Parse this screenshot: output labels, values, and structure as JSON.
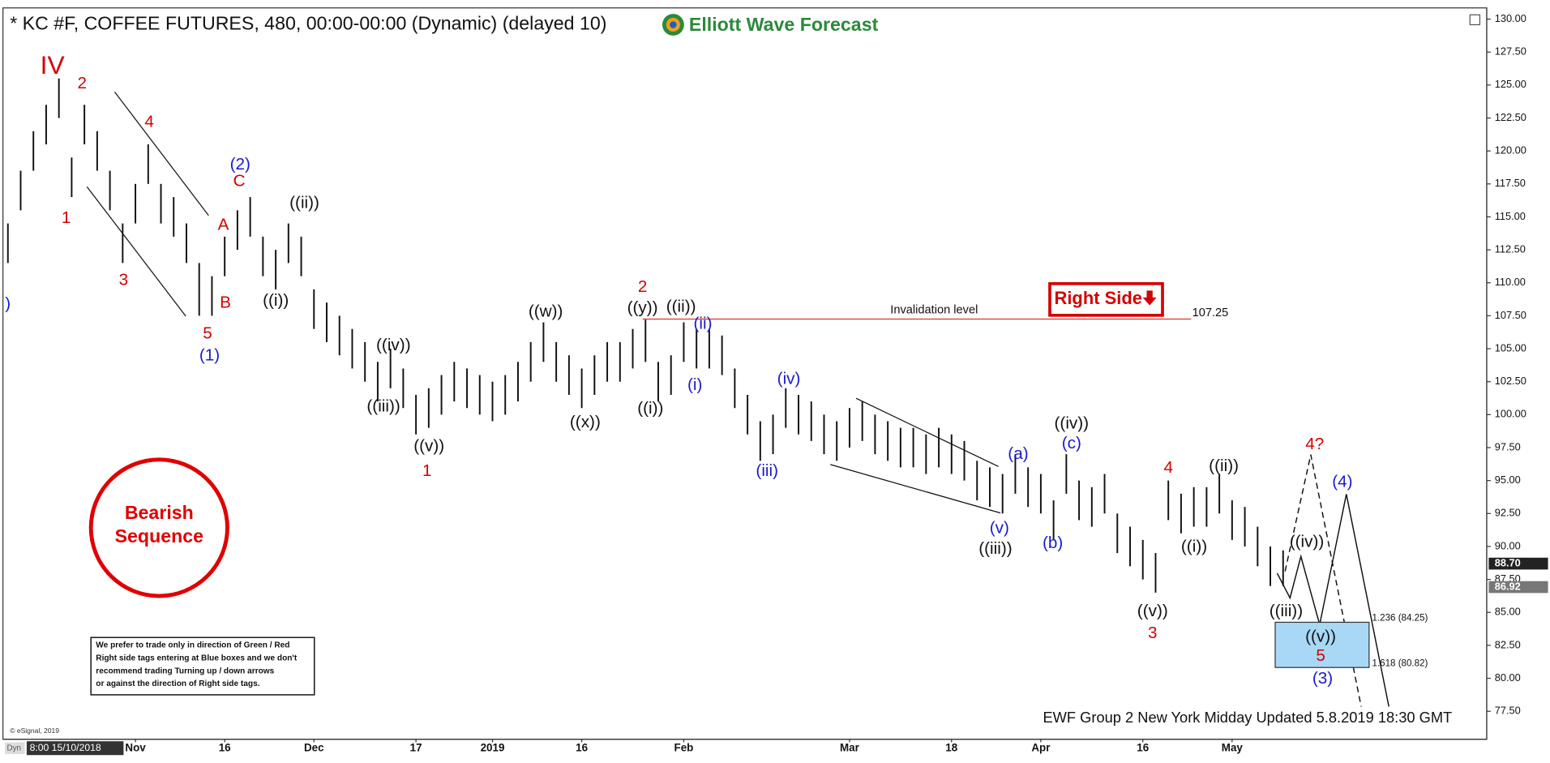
{
  "title": "* KC #F, COFFEE FUTURES, 480, 00:00-00:00 (Dynamic) (delayed 10)",
  "logo": "Elliott Wave Forecast",
  "right_side_tag": "Right Side",
  "bearish_label": [
    "Bearish",
    "Sequence"
  ],
  "disclaimer": [
    "We prefer to trade only in direction of Green / Red",
    "Right side tags entering at Blue boxes and we don't",
    "recommend trading Turning up / down arrows",
    "or against the direction of Right side tags."
  ],
  "footer": "EWF Group 2 New York Midday Updated 5.8.2019 18:30 GMT",
  "copyright": "© eSignal, 2019",
  "cursor_label": "Dyn",
  "cursor_time": "8:00 15/10/2018",
  "chart_data": {
    "type": "ohlc",
    "color": "#111111",
    "categories": [
      null,
      null,
      null,
      null,
      null,
      null,
      null,
      null,
      null,
      null,
      "Nov",
      null,
      null,
      null,
      null,
      null,
      null,
      "16",
      null,
      null,
      null,
      null,
      null,
      null,
      "Dec",
      null,
      null,
      null,
      null,
      null,
      null,
      null,
      "17",
      null,
      null,
      null,
      null,
      null,
      "2019",
      null,
      null,
      null,
      null,
      null,
      null,
      "16",
      null,
      null,
      null,
      null,
      null,
      null,
      null,
      "Feb",
      null,
      null,
      null,
      null,
      null,
      null,
      null,
      null,
      null,
      null,
      null,
      null,
      "Mar",
      null,
      null,
      null,
      null,
      null,
      null,
      null,
      "18",
      null,
      null,
      null,
      null,
      null,
      null,
      "Apr",
      null,
      null,
      null,
      null,
      null,
      null,
      null,
      "16",
      null,
      null,
      null,
      null,
      null,
      null,
      "May",
      null,
      null,
      null,
      null,
      null,
      null,
      null,
      null,
      null,
      null,
      null,
      null,
      null,
      null,
      null,
      null,
      null
    ],
    "high": [
      114.5,
      118.5,
      121.5,
      123.5,
      125.5,
      119.5,
      123.5,
      121.5,
      118.5,
      114.5,
      117.5,
      120.5,
      117.5,
      116.5,
      114.5,
      111.5,
      110.5,
      113.5,
      115.5,
      116.5,
      113.5,
      112.5,
      114.5,
      113.5,
      109.5,
      108.5,
      107.5,
      106.5,
      105.5,
      104,
      105,
      103.5,
      101.5,
      102,
      103,
      104,
      103.5,
      103,
      102.5,
      103,
      104,
      105.5,
      107,
      105.5,
      104.5,
      103.5,
      104.5,
      105.5,
      105.5,
      106.5,
      107.2,
      104,
      104.5,
      107,
      106.5,
      106.5,
      106,
      103.5,
      101.5,
      99.5,
      100,
      102,
      101.5,
      101,
      100,
      99.5,
      100.5,
      101,
      100,
      99.5,
      99,
      99,
      98.5,
      99,
      98.5,
      98,
      96.5,
      96,
      95.5,
      97,
      96,
      95.5,
      93.5,
      97,
      95,
      94.5,
      95.5,
      92.5,
      91.5,
      90.5,
      89.5,
      95,
      94,
      94.5,
      94.5,
      95.5,
      93.5,
      93,
      91.5,
      90,
      89.7,
      null,
      null,
      null,
      null,
      null,
      null,
      null,
      null,
      null,
      null,
      null,
      null,
      null
    ],
    "low": [
      111.5,
      115.5,
      118.5,
      120.5,
      122.5,
      116.5,
      120.5,
      118.5,
      115.5,
      111.5,
      114.5,
      117.5,
      114.5,
      113.5,
      111.5,
      107.5,
      107.5,
      110.5,
      112.5,
      113.5,
      110.5,
      109.5,
      111.5,
      110.5,
      106.5,
      105.5,
      104.5,
      103.5,
      102.5,
      101,
      102,
      100.5,
      98.5,
      99,
      100,
      101,
      100.5,
      100,
      99.5,
      100,
      101,
      102.5,
      104,
      102.5,
      101.5,
      100.5,
      101.5,
      102.5,
      102.5,
      103.5,
      104,
      101,
      101.5,
      104,
      103.5,
      103.5,
      103,
      100.5,
      98.5,
      96.5,
      97,
      99,
      98.5,
      98,
      97,
      96.5,
      97.5,
      98,
      97,
      96.5,
      96,
      96,
      95.5,
      96,
      95.5,
      95,
      93.5,
      93,
      92.5,
      94,
      93,
      92.5,
      90.5,
      94,
      92,
      91.5,
      92.5,
      89.5,
      88.5,
      87.5,
      86.5,
      92,
      91,
      91.5,
      91.5,
      92.5,
      90.5,
      90,
      88.5,
      87,
      87,
      null,
      null,
      null,
      null,
      null,
      null,
      null,
      null,
      null,
      null,
      null,
      null,
      null
    ],
    "ylim": [
      75.6,
      130.7
    ],
    "yticks": [
      {
        "value": 77.5,
        "label": "77.50"
      },
      {
        "value": 80,
        "label": "80.00"
      },
      {
        "value": 82.5,
        "label": "82.50"
      },
      {
        "value": 85,
        "label": "85.00"
      },
      {
        "value": 87.5,
        "label": "87.50"
      },
      {
        "value": 90,
        "label": "90.00"
      },
      {
        "value": 92.5,
        "label": "92.50"
      },
      {
        "value": 95,
        "label": "95.00"
      },
      {
        "value": 97.5,
        "label": "97.50"
      },
      {
        "value": 100,
        "label": "100.00"
      },
      {
        "value": 102.5,
        "label": "102.50"
      },
      {
        "value": 105,
        "label": "105.00"
      },
      {
        "value": 107.5,
        "label": "107.50"
      },
      {
        "value": 110,
        "label": "110.00"
      },
      {
        "value": 112.5,
        "label": "112.50"
      },
      {
        "value": 115,
        "label": "115.00"
      },
      {
        "value": 117.5,
        "label": "117.50"
      },
      {
        "value": 120,
        "label": "120.00"
      },
      {
        "value": 122.5,
        "label": "122.50"
      },
      {
        "value": 125,
        "label": "125.00"
      },
      {
        "value": 127.5,
        "label": "127.50"
      },
      {
        "value": 130,
        "label": "130.00"
      }
    ],
    "price_tags": [
      {
        "value": 88.7,
        "label": "88.70",
        "color": "#222222"
      },
      {
        "value": 86.92,
        "label": "86.92",
        "color": "#777777"
      }
    ],
    "invalidation": {
      "value": 107.25,
      "label": "107.25",
      "text": "Invalidation level",
      "color": "#e03030"
    },
    "fib_levels": [
      {
        "value": 84.25,
        "label": "1.236 (84.25)"
      },
      {
        "value": 80.82,
        "label": "1.618 (80.82)"
      }
    ],
    "target_box_color": "#a8d8f5",
    "annotations": [
      {
        "text": "IV",
        "color": "#d40000"
      },
      {
        "text": "2",
        "color": "#d40000"
      },
      {
        "text": "1",
        "color": "#d40000"
      },
      {
        "text": "4",
        "color": "#d40000"
      },
      {
        "text": "3",
        "color": "#d40000"
      },
      {
        "text": "(2)",
        "color": "#1a1acc"
      },
      {
        "text": "C",
        "color": "#d40000"
      },
      {
        "text": "A",
        "color": "#d40000"
      },
      {
        "text": "B",
        "color": "#d40000"
      },
      {
        "text": "5",
        "color": "#d40000"
      },
      {
        "text": "(1)",
        "color": "#1a1acc"
      },
      {
        "text": ")",
        "color": "#1a1acc"
      },
      {
        "text": "((ii))",
        "color": "#111111"
      },
      {
        "text": "((i))",
        "color": "#111111"
      },
      {
        "text": "((iv))",
        "color": "#111111"
      },
      {
        "text": "((iii))",
        "color": "#111111"
      },
      {
        "text": "((v))",
        "color": "#111111"
      },
      {
        "text": "1",
        "color": "#d40000"
      },
      {
        "text": "((w))",
        "color": "#111111"
      },
      {
        "text": "((x))",
        "color": "#111111"
      },
      {
        "text": "((y))",
        "color": "#111111"
      },
      {
        "text": "2",
        "color": "#d40000"
      },
      {
        "text": "((ii))",
        "color": "#111111"
      },
      {
        "text": "(ii)",
        "color": "#1a1acc"
      },
      {
        "text": "((i))",
        "color": "#111111"
      },
      {
        "text": "(i)",
        "color": "#1a1acc"
      },
      {
        "text": "(iv)",
        "color": "#1a1acc"
      },
      {
        "text": "(iii)",
        "color": "#1a1acc"
      },
      {
        "text": "(a)",
        "color": "#1a1acc"
      },
      {
        "text": "(c)",
        "color": "#1a1acc"
      },
      {
        "text": "((iv))",
        "color": "#111111"
      },
      {
        "text": "(v)",
        "color": "#1a1acc"
      },
      {
        "text": "((iii))",
        "color": "#111111"
      },
      {
        "text": "(b)",
        "color": "#1a1acc"
      },
      {
        "text": "4",
        "color": "#d40000"
      },
      {
        "text": "((ii))",
        "color": "#111111"
      },
      {
        "text": "((i))",
        "color": "#111111"
      },
      {
        "text": "((v))",
        "color": "#111111"
      },
      {
        "text": "3",
        "color": "#d40000"
      },
      {
        "text": "4?",
        "color": "#d40000"
      },
      {
        "text": "(4)",
        "color": "#1a1acc"
      },
      {
        "text": "((iv))",
        "color": "#111111"
      },
      {
        "text": "((iii))",
        "color": "#111111"
      },
      {
        "text": "((v))",
        "color": "#111111"
      },
      {
        "text": "5",
        "color": "#d40000"
      },
      {
        "text": "(3)",
        "color": "#1a1acc"
      }
    ]
  }
}
